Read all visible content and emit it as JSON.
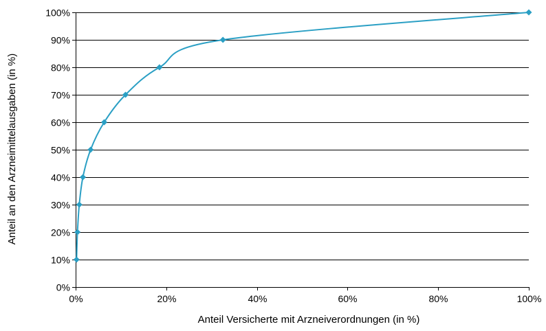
{
  "chart_data": {
    "type": "line",
    "title": "",
    "xlabel": "Anteil Versicherte mit Arzneiverordnungen (in %)",
    "ylabel": "Anteil an den Arzneimittelausgaben (in %)",
    "xlim": [
      0,
      100
    ],
    "ylim": [
      0,
      100
    ],
    "x_ticks": [
      {
        "value": 0,
        "label": "0%"
      },
      {
        "value": 20,
        "label": "20%"
      },
      {
        "value": 40,
        "label": "40%"
      },
      {
        "value": 60,
        "label": "60%"
      },
      {
        "value": 80,
        "label": "80%"
      },
      {
        "value": 100,
        "label": "100%"
      }
    ],
    "y_ticks": [
      {
        "value": 0,
        "label": "0%"
      },
      {
        "value": 10,
        "label": "10%"
      },
      {
        "value": 20,
        "label": "20%"
      },
      {
        "value": 30,
        "label": "30%"
      },
      {
        "value": 40,
        "label": "40%"
      },
      {
        "value": 50,
        "label": "50%"
      },
      {
        "value": 60,
        "label": "60%"
      },
      {
        "value": 70,
        "label": "70%"
      },
      {
        "value": 80,
        "label": "80%"
      },
      {
        "value": 90,
        "label": "90%"
      },
      {
        "value": 100,
        "label": "100%"
      }
    ],
    "grid": "horizontal",
    "marker": "diamond",
    "smooth": true,
    "series": [
      {
        "color": "#2a9fc4",
        "points": [
          {
            "x": 0.2,
            "y": 10
          },
          {
            "x": 0.4,
            "y": 20
          },
          {
            "x": 0.8,
            "y": 30
          },
          {
            "x": 1.6,
            "y": 40
          },
          {
            "x": 3.3,
            "y": 50
          },
          {
            "x": 6.3,
            "y": 60
          },
          {
            "x": 11.0,
            "y": 70
          },
          {
            "x": 18.5,
            "y": 80
          },
          {
            "x": 32.5,
            "y": 90
          },
          {
            "x": 100,
            "y": 100
          }
        ]
      }
    ]
  }
}
